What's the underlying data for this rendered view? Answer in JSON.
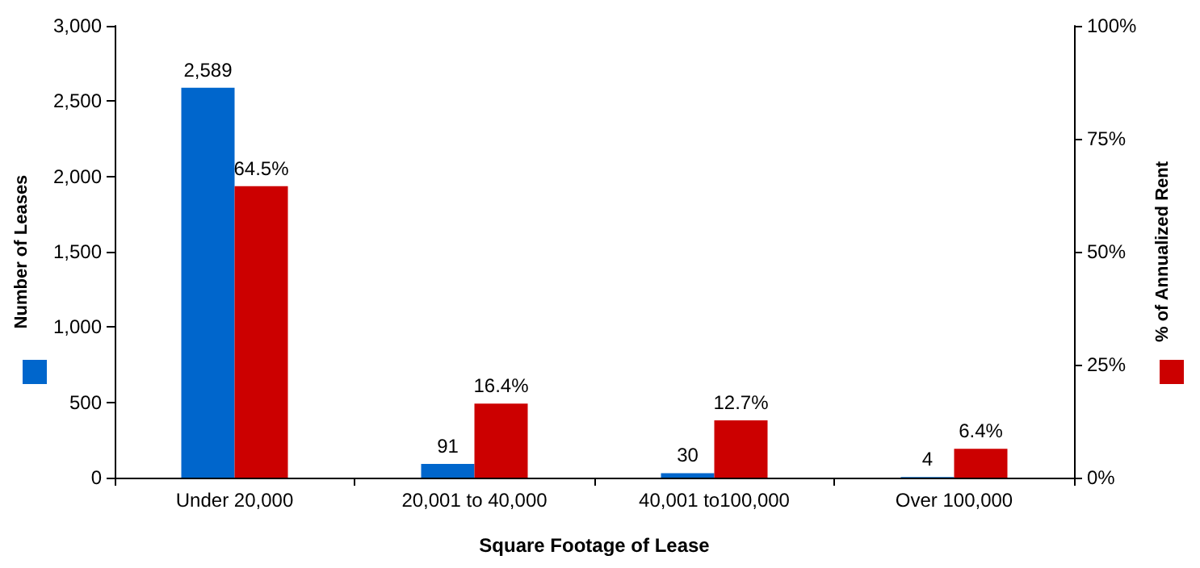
{
  "chart_data": {
    "type": "bar",
    "xlabel": "Square Footage of Lease",
    "ylabel": "Number of Leases",
    "y2label": "% of Annualized Rent",
    "categories": [
      "Under 20,000",
      "20,001 to 40,000",
      "40,001 to100,000",
      "Over 100,000"
    ],
    "series": [
      {
        "color": "#0066cc",
        "values": [
          2589,
          91,
          30,
          4
        ],
        "value_labels": [
          "2,589",
          "91",
          "30",
          "4"
        ]
      },
      {
        "color": "#cc0000",
        "axis": "y2",
        "values": [
          64.5,
          16.4,
          12.7,
          6.4
        ],
        "value_labels": [
          "64.5%",
          "16.4%",
          "12.7%",
          "6.4%"
        ]
      }
    ],
    "ylim": [
      0,
      3000
    ],
    "yticks": [
      {
        "value": 0,
        "label": "0"
      },
      {
        "value": 500,
        "label": "500"
      },
      {
        "value": 1000,
        "label": "1,000"
      },
      {
        "value": 1500,
        "label": "1,500"
      },
      {
        "value": 2000,
        "label": "2,000"
      },
      {
        "value": 2500,
        "label": "2,500"
      },
      {
        "value": 3000,
        "label": "3,000"
      }
    ],
    "y2lim": [
      0,
      100
    ],
    "y2ticks": [
      {
        "value": 0,
        "label": "0%"
      },
      {
        "value": 25,
        "label": "25%"
      },
      {
        "value": 50,
        "label": "50%"
      },
      {
        "value": 75,
        "label": "75%"
      },
      {
        "value": 100,
        "label": "100%"
      }
    ],
    "grid": false
  }
}
